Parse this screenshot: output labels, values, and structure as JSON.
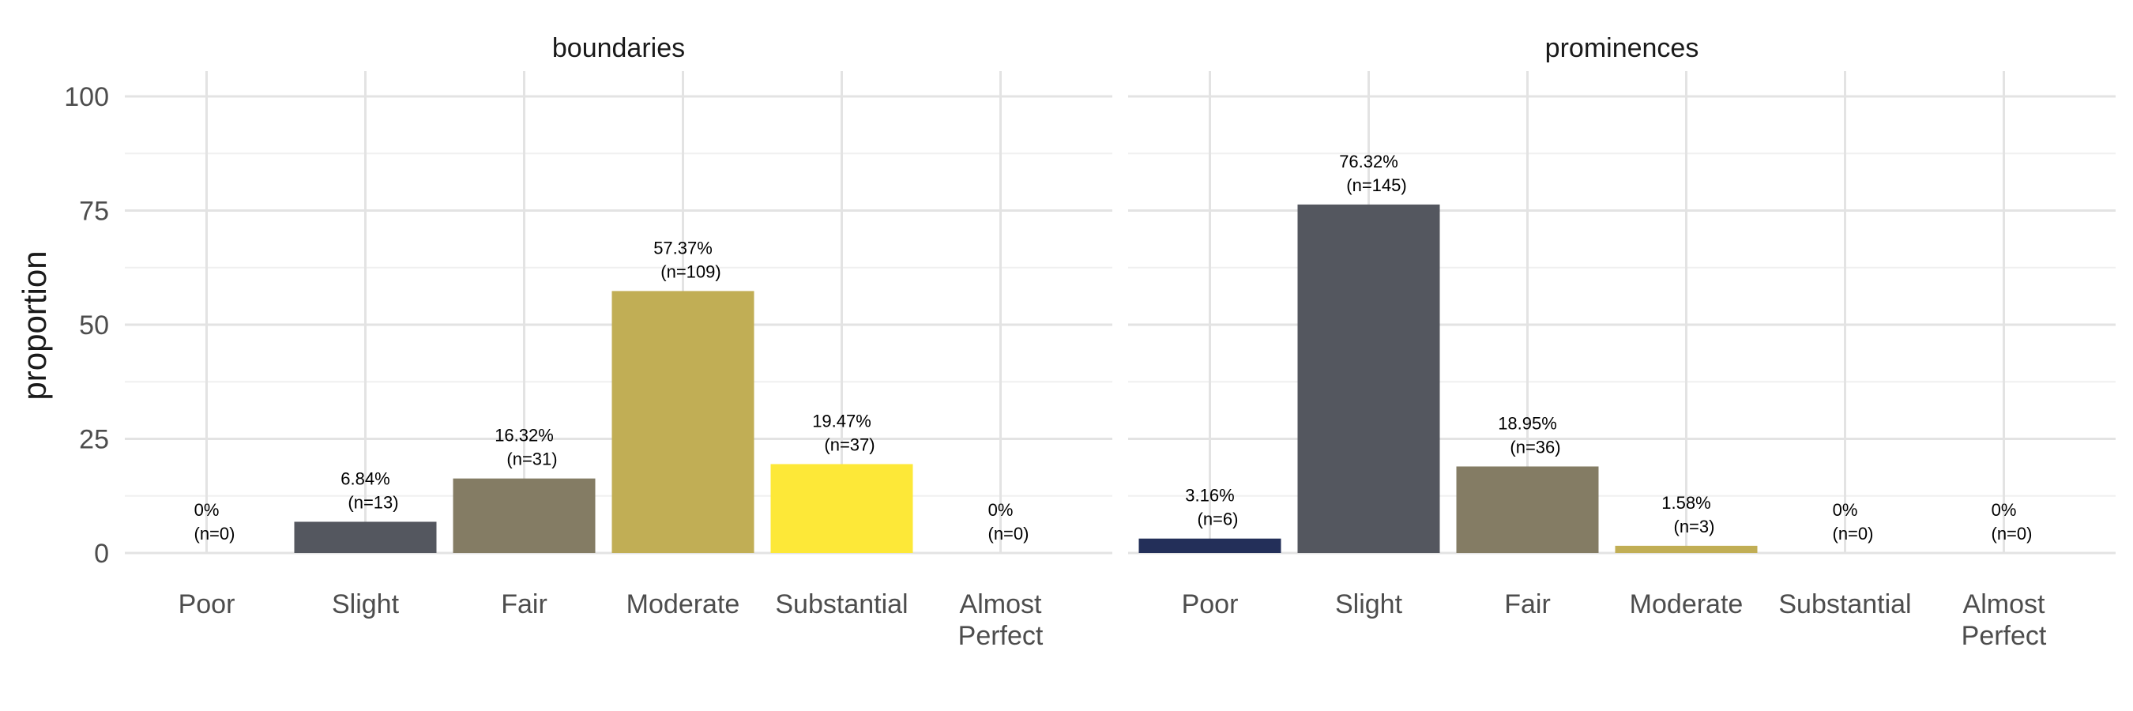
{
  "chart_data": {
    "type": "bar",
    "ylabel": "proportion",
    "xlabel": "",
    "ylim": [
      0,
      100
    ],
    "yticks": [
      0,
      25,
      50,
      75,
      100
    ],
    "grid": true,
    "legend": "none",
    "categories": [
      "Poor",
      "Slight",
      "Fair",
      "Moderate",
      "Substantial",
      "Almost Perfect"
    ],
    "category_lines": [
      [
        "Poor"
      ],
      [
        "Slight"
      ],
      [
        "Fair"
      ],
      [
        "Moderate"
      ],
      [
        "Substantial"
      ],
      [
        "Almost",
        "Perfect"
      ]
    ],
    "colors": {
      "Poor": "#232f59",
      "Slight": "#54575f",
      "Fair": "#847c64",
      "Moderate": "#c1ae55",
      "Substantial": "#fde838",
      "Almost Perfect": "#fde838"
    },
    "panels": [
      {
        "title": "boundaries",
        "values": [
          0,
          6.84,
          16.32,
          57.37,
          19.47,
          0
        ],
        "pct_labels": [
          "0%",
          "6.84%",
          "16.32%",
          "57.37%",
          "19.47%",
          "0%"
        ],
        "n_labels": [
          "(n=0)",
          "(n=13)",
          "(n=31)",
          "(n=109)",
          "(n=37)",
          "(n=0)"
        ]
      },
      {
        "title": "prominences",
        "values": [
          3.16,
          76.32,
          18.95,
          1.58,
          0,
          0
        ],
        "pct_labels": [
          "3.16%",
          "76.32%",
          "18.95%",
          "1.58%",
          "0%",
          "0%"
        ],
        "n_labels": [
          "(n=6)",
          "(n=145)",
          "(n=36)",
          "(n=3)",
          "(n=0)",
          "(n=0)"
        ]
      }
    ]
  }
}
